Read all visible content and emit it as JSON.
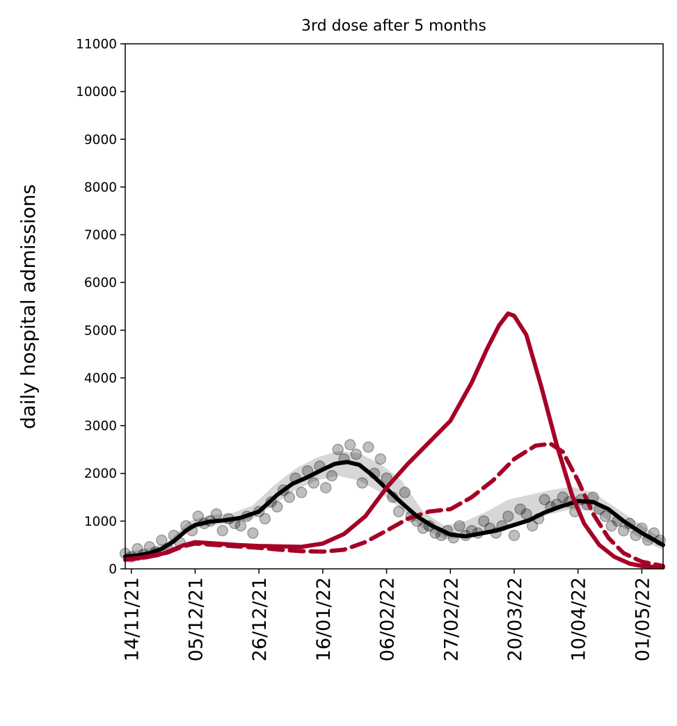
{
  "chart_data": {
    "type": "line",
    "title": "3rd dose after 5 months",
    "xlabel": "",
    "ylabel": "daily hospital admissions",
    "xlim": [
      "2021-11-12",
      "2022-05-08"
    ],
    "ylim": [
      0,
      11000
    ],
    "y_ticks": [
      0,
      1000,
      2000,
      3000,
      4000,
      5000,
      6000,
      7000,
      8000,
      9000,
      10000,
      11000
    ],
    "x_ticks": [
      {
        "date": "2021-11-14",
        "label": "14/11/21"
      },
      {
        "date": "2021-12-05",
        "label": "05/12/21"
      },
      {
        "date": "2021-12-26",
        "label": "26/12/21"
      },
      {
        "date": "2022-01-16",
        "label": "16/01/22"
      },
      {
        "date": "2022-02-06",
        "label": "06/02/22"
      },
      {
        "date": "2022-02-27",
        "label": "27/02/22"
      },
      {
        "date": "2022-03-20",
        "label": "20/03/22"
      },
      {
        "date": "2022-04-10",
        "label": "10/04/22"
      },
      {
        "date": "2022-05-01",
        "label": "01/05/22"
      }
    ],
    "grid": false,
    "colors": {
      "fit": "#000000",
      "band": "#bdbdbd",
      "scenario": "#a50026",
      "observed": "#000000"
    },
    "band": {
      "x": [
        "2021-11-12",
        "2021-11-19",
        "2021-11-26",
        "2021-12-03",
        "2021-12-10",
        "2021-12-17",
        "2021-12-24",
        "2021-12-31",
        "2022-01-07",
        "2022-01-14",
        "2022-01-21",
        "2022-01-28",
        "2022-02-04",
        "2022-02-11",
        "2022-02-18",
        "2022-02-25",
        "2022-03-04",
        "2022-03-11",
        "2022-03-18",
        "2022-03-25",
        "2022-04-01",
        "2022-04-08",
        "2022-04-15",
        "2022-04-22",
        "2022-04-29",
        "2022-05-06",
        "2022-05-08"
      ],
      "upper": [
        350,
        420,
        560,
        1000,
        1130,
        1160,
        1330,
        1750,
        2100,
        2330,
        2470,
        2420,
        2200,
        1850,
        1200,
        900,
        1000,
        1200,
        1450,
        1550,
        1650,
        1720,
        1600,
        1300,
        1000,
        700,
        640
      ],
      "lower": [
        200,
        250,
        400,
        820,
        920,
        950,
        1050,
        1350,
        1650,
        1850,
        1950,
        1850,
        1600,
        1250,
        850,
        620,
        650,
        800,
        900,
        1000,
        1150,
        1250,
        1200,
        950,
        700,
        450,
        400
      ]
    },
    "series": [
      {
        "style": "black-solid",
        "x": [
          "2021-11-12",
          "2021-11-16",
          "2021-11-20",
          "2021-11-24",
          "2021-11-28",
          "2021-12-02",
          "2021-12-05",
          "2021-12-10",
          "2021-12-15",
          "2021-12-20",
          "2021-12-26",
          "2022-01-01",
          "2022-01-06",
          "2022-01-11",
          "2022-01-16",
          "2022-01-20",
          "2022-01-24",
          "2022-01-28",
          "2022-02-01",
          "2022-02-06",
          "2022-02-11",
          "2022-02-16",
          "2022-02-21",
          "2022-02-27",
          "2022-03-04",
          "2022-03-09",
          "2022-03-14",
          "2022-03-20",
          "2022-03-25",
          "2022-03-30",
          "2022-04-04",
          "2022-04-10",
          "2022-04-15",
          "2022-04-20",
          "2022-04-25",
          "2022-05-01",
          "2022-05-08"
        ],
        "values": [
          260,
          280,
          330,
          420,
          580,
          800,
          920,
          990,
          1020,
          1070,
          1200,
          1550,
          1780,
          1920,
          2080,
          2200,
          2240,
          2180,
          1980,
          1680,
          1380,
          1100,
          900,
          720,
          680,
          740,
          800,
          920,
          1020,
          1180,
          1300,
          1420,
          1400,
          1250,
          1000,
          750,
          500
        ]
      },
      {
        "style": "red-solid",
        "x": [
          "2021-11-12",
          "2021-11-18",
          "2021-11-25",
          "2021-12-01",
          "2021-12-05",
          "2021-12-12",
          "2021-12-19",
          "2021-12-26",
          "2022-01-02",
          "2022-01-09",
          "2022-01-16",
          "2022-01-23",
          "2022-01-30",
          "2022-02-06",
          "2022-02-13",
          "2022-02-20",
          "2022-02-27",
          "2022-03-06",
          "2022-03-11",
          "2022-03-15",
          "2022-03-18",
          "2022-03-20",
          "2022-03-24",
          "2022-03-29",
          "2022-04-03",
          "2022-04-08",
          "2022-04-12",
          "2022-04-17",
          "2022-04-22",
          "2022-04-27",
          "2022-05-01",
          "2022-05-08"
        ],
        "values": [
          200,
          240,
          330,
          490,
          560,
          530,
          500,
          480,
          470,
          460,
          530,
          730,
          1100,
          1700,
          2200,
          2650,
          3100,
          3900,
          4600,
          5100,
          5350,
          5300,
          4900,
          3800,
          2600,
          1550,
          950,
          500,
          250,
          110,
          60,
          30
        ]
      },
      {
        "style": "red-dashed",
        "x": [
          "2021-11-12",
          "2021-11-18",
          "2021-11-25",
          "2021-12-01",
          "2021-12-05",
          "2021-12-12",
          "2021-12-19",
          "2021-12-26",
          "2022-01-02",
          "2022-01-09",
          "2022-01-16",
          "2022-01-23",
          "2022-01-30",
          "2022-02-06",
          "2022-02-13",
          "2022-02-20",
          "2022-02-27",
          "2022-03-06",
          "2022-03-13",
          "2022-03-20",
          "2022-03-27",
          "2022-04-01",
          "2022-04-05",
          "2022-04-10",
          "2022-04-15",
          "2022-04-20",
          "2022-04-25",
          "2022-05-01",
          "2022-05-08"
        ],
        "values": [
          190,
          230,
          320,
          470,
          530,
          500,
          470,
          440,
          400,
          370,
          360,
          400,
          560,
          800,
          1050,
          1200,
          1250,
          1500,
          1850,
          2300,
          2580,
          2620,
          2450,
          1850,
          1150,
          650,
          330,
          150,
          60
        ]
      }
    ],
    "observed_points": {
      "x": [
        "2021-11-12",
        "2021-11-14",
        "2021-11-16",
        "2021-11-18",
        "2021-11-20",
        "2021-11-22",
        "2021-11-24",
        "2021-11-26",
        "2021-11-28",
        "2021-11-30",
        "2021-12-02",
        "2021-12-04",
        "2021-12-06",
        "2021-12-08",
        "2021-12-10",
        "2021-12-12",
        "2021-12-14",
        "2021-12-16",
        "2021-12-18",
        "2021-12-20",
        "2021-12-22",
        "2021-12-24",
        "2021-12-26",
        "2021-12-28",
        "2021-12-30",
        "2022-01-01",
        "2022-01-03",
        "2022-01-05",
        "2022-01-07",
        "2022-01-09",
        "2022-01-11",
        "2022-01-13",
        "2022-01-15",
        "2022-01-17",
        "2022-01-19",
        "2022-01-21",
        "2022-01-23",
        "2022-01-25",
        "2022-01-27",
        "2022-01-29",
        "2022-01-31",
        "2022-02-02",
        "2022-02-04",
        "2022-02-06",
        "2022-02-08",
        "2022-02-10",
        "2022-02-12",
        "2022-02-14",
        "2022-02-16",
        "2022-02-18",
        "2022-02-20",
        "2022-02-22",
        "2022-02-24",
        "2022-02-26",
        "2022-02-28",
        "2022-03-02",
        "2022-03-04",
        "2022-03-06",
        "2022-03-08",
        "2022-03-10",
        "2022-03-12",
        "2022-03-14",
        "2022-03-16",
        "2022-03-18",
        "2022-03-20",
        "2022-03-22",
        "2022-03-24",
        "2022-03-26",
        "2022-03-28",
        "2022-03-30",
        "2022-04-01",
        "2022-04-03",
        "2022-04-05",
        "2022-04-07",
        "2022-04-09",
        "2022-04-11",
        "2022-04-13",
        "2022-04-15",
        "2022-04-17",
        "2022-04-19",
        "2022-04-21",
        "2022-04-23",
        "2022-04-25",
        "2022-04-27",
        "2022-04-29",
        "2022-05-01",
        "2022-05-03",
        "2022-05-05",
        "2022-05-07"
      ],
      "values": [
        320,
        250,
        420,
        300,
        460,
        350,
        600,
        420,
        700,
        550,
        900,
        800,
        1100,
        950,
        1000,
        1150,
        800,
        1050,
        950,
        900,
        1100,
        750,
        1200,
        1050,
        1400,
        1300,
        1650,
        1500,
        1900,
        1600,
        2050,
        1800,
        2150,
        1700,
        1950,
        2500,
        2300,
        2600,
        2400,
        1800,
        2550,
        2000,
        2300,
        1900,
        1500,
        1200,
        1600,
        1100,
        1000,
        850,
        900,
        750,
        700,
        800,
        650,
        900,
        700,
        800,
        750,
        1000,
        850,
        750,
        900,
        1100,
        700,
        1250,
        1150,
        900,
        1050,
        1450,
        1300,
        1350,
        1500,
        1400,
        1200,
        1450,
        1350,
        1500,
        1250,
        1100,
        900,
        1000,
        800,
        950,
        700,
        850,
        600,
        750,
        600
      ]
    }
  }
}
